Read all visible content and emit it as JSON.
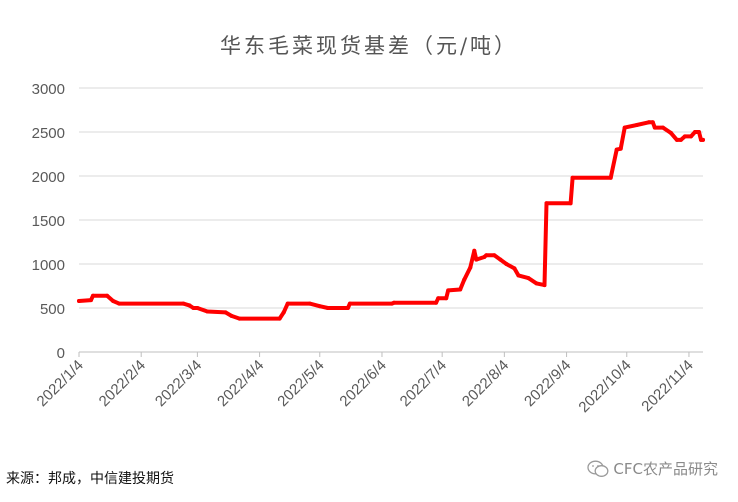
{
  "chart_data": {
    "type": "line",
    "title": "华东毛菜现货基差（元/吨）",
    "xlabel": "",
    "ylabel": "",
    "ylim": [
      0,
      3000
    ],
    "yticks": [
      0,
      500,
      1000,
      1500,
      2000,
      2500,
      3000
    ],
    "xticks": [
      "2022/1/4",
      "2022/2/4",
      "2022/3/4",
      "2022/4/4",
      "2022/5/4",
      "2022/6/4",
      "2022/7/4",
      "2022/8/4",
      "2022/9/4",
      "2022/10/4",
      "2022/11/4"
    ],
    "xrange": [
      "2022/1/4",
      "2022/11/11"
    ],
    "grid": "horizontal",
    "line_color": "#ff0000",
    "series": [
      {
        "name": "",
        "points": [
          [
            "2022/1/4",
            580
          ],
          [
            "2022/1/10",
            590
          ],
          [
            "2022/1/11",
            640
          ],
          [
            "2022/1/18",
            640
          ],
          [
            "2022/1/21",
            580
          ],
          [
            "2022/1/24",
            550
          ],
          [
            "2022/2/25",
            550
          ],
          [
            "2022/2/28",
            530
          ],
          [
            "2022/3/2",
            500
          ],
          [
            "2022/3/4",
            500
          ],
          [
            "2022/3/9",
            460
          ],
          [
            "2022/3/18",
            450
          ],
          [
            "2022/3/21",
            410
          ],
          [
            "2022/3/25",
            380
          ],
          [
            "2022/4/14",
            380
          ],
          [
            "2022/4/16",
            450
          ],
          [
            "2022/4/18",
            550
          ],
          [
            "2022/4/29",
            550
          ],
          [
            "2022/5/4",
            520
          ],
          [
            "2022/5/8",
            500
          ],
          [
            "2022/5/18",
            500
          ],
          [
            "2022/5/19",
            550
          ],
          [
            "2022/6/9",
            550
          ],
          [
            "2022/6/10",
            560
          ],
          [
            "2022/7/1",
            560
          ],
          [
            "2022/7/2",
            610
          ],
          [
            "2022/7/6",
            610
          ],
          [
            "2022/7/7",
            700
          ],
          [
            "2022/7/13",
            710
          ],
          [
            "2022/7/15",
            820
          ],
          [
            "2022/7/18",
            960
          ],
          [
            "2022/7/20",
            1150
          ],
          [
            "2022/7/21",
            1050
          ],
          [
            "2022/7/25",
            1080
          ],
          [
            "2022/7/26",
            1100
          ],
          [
            "2022/7/30",
            1100
          ],
          [
            "2022/8/2",
            1050
          ],
          [
            "2022/8/5",
            1000
          ],
          [
            "2022/8/9",
            950
          ],
          [
            "2022/8/11",
            870
          ],
          [
            "2022/8/16",
            840
          ],
          [
            "2022/8/20",
            780
          ],
          [
            "2022/8/24",
            760
          ],
          [
            "2022/8/25",
            1690
          ],
          [
            "2022/9/6",
            1690
          ],
          [
            "2022/9/7",
            1980
          ],
          [
            "2022/9/26",
            1980
          ],
          [
            "2022/9/29",
            2300
          ],
          [
            "2022/10/1",
            2310
          ],
          [
            "2022/10/3",
            2550
          ],
          [
            "2022/10/9",
            2580
          ],
          [
            "2022/10/15",
            2610
          ],
          [
            "2022/10/17",
            2610
          ],
          [
            "2022/10/18",
            2550
          ],
          [
            "2022/10/22",
            2550
          ],
          [
            "2022/10/26",
            2490
          ],
          [
            "2022/10/29",
            2410
          ],
          [
            "2022/10/31",
            2410
          ],
          [
            "2022/11/2",
            2450
          ],
          [
            "2022/11/5",
            2450
          ],
          [
            "2022/11/7",
            2500
          ],
          [
            "2022/11/9",
            2500
          ],
          [
            "2022/11/10",
            2410
          ],
          [
            "2022/11/11",
            2410
          ]
        ]
      }
    ]
  },
  "source_note": "来源：邦成，中信建投期货",
  "watermark": "CFC农产品研究",
  "watermark_icon": "wechat-icon"
}
